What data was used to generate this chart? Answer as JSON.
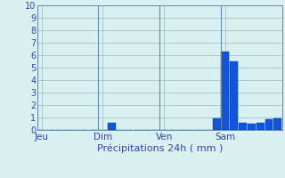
{
  "title": "",
  "xlabel": "Précipitations 24h ( mm )",
  "ylabel": "",
  "background_color": "#d8f0f0",
  "bar_color": "#1155dd",
  "bar_edge_color": "#0033aa",
  "ylim": [
    0,
    10
  ],
  "yticks": [
    0,
    1,
    2,
    3,
    4,
    5,
    6,
    7,
    8,
    9,
    10
  ],
  "grid_color": "#99bbbb",
  "day_labels": [
    "Jeu",
    "Dim",
    "Ven",
    "Sam"
  ],
  "n_bars": 28,
  "values": [
    0,
    0,
    0,
    0,
    0,
    0,
    0,
    0,
    0.55,
    0,
    0,
    0,
    0,
    0,
    0,
    0,
    0,
    0,
    0,
    0,
    0.9,
    6.3,
    5.5,
    0.6,
    0.5,
    0.6,
    0.85,
    0.95
  ]
}
